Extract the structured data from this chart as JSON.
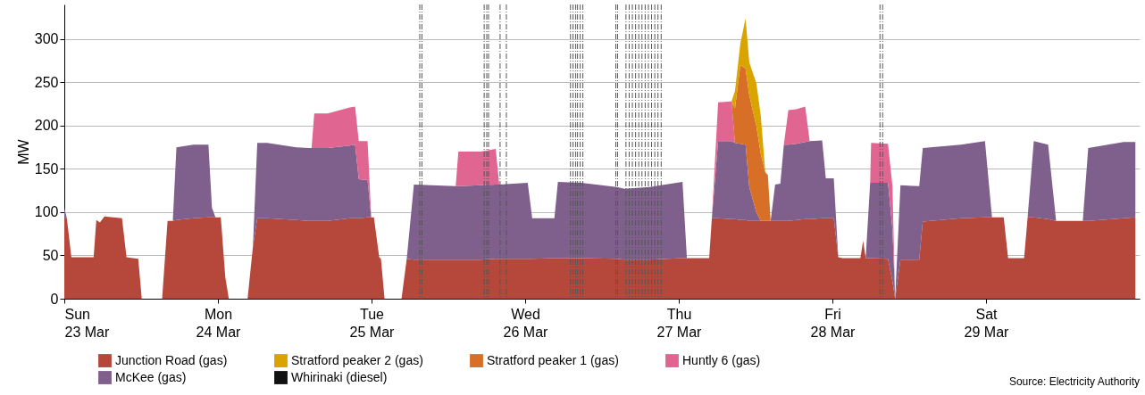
{
  "chart_data": {
    "type": "area",
    "stacked": true,
    "ylabel": "MW",
    "ylim": [
      0,
      340
    ],
    "yticks": [
      0,
      50,
      100,
      150,
      200,
      250,
      300
    ],
    "xlim": [
      "--03-23T00:00",
      "--03-30T00:00"
    ],
    "xticks": [
      {
        "value": "--03-23",
        "label": "Sun\n23 Mar"
      },
      {
        "value": "--03-24",
        "label": "Mon\n24 Mar"
      },
      {
        "value": "--03-25",
        "label": "Tue\n25 Mar"
      },
      {
        "value": "--03-26",
        "label": "Wed\n26 Mar"
      },
      {
        "value": "--03-27",
        "label": "Thu\n27 Mar"
      },
      {
        "value": "--03-28",
        "label": "Fri\n28 Mar"
      },
      {
        "value": "--03-29",
        "label": "Sat\n29 Mar"
      }
    ],
    "grid": "y",
    "legend": "bottom",
    "x": [
      "--03-23T00:00",
      "--03-23T00:24",
      "--03-23T01:06",
      "--03-23T04:35",
      "--03-23T05:00",
      "--03-23T05:34",
      "--03-23T06:16",
      "--03-23T09:01",
      "--03-23T09:43",
      "--03-23T11:33",
      "--03-23T12:06",
      "--03-23T15:17",
      "--03-23T16:08",
      "--03-23T16:57",
      "--03-23T17:31",
      "--03-23T20:10",
      "--03-23T22:31",
      "--03-23T23:04",
      "--03-23T23:37",
      "--03-24T00:27",
      "--03-24T01:09",
      "--03-24T01:42",
      "--03-24T04:38",
      "--03-24T05:28",
      "--03-24T06:09",
      "--03-24T07:41",
      "--03-24T12:16",
      "--03-24T14:12",
      "--03-24T14:38",
      "--03-24T15:03",
      "--03-24T17:08",
      "--03-24T20:37",
      "--03-24T21:26",
      "--03-24T22:00",
      "--03-24T23:23",
      "--03-24T23:57",
      "--03-25T00:22",
      "--03-25T01:12",
      "--03-25T01:28",
      "--03-25T02:02",
      "--03-25T04:41",
      "--03-25T05:30",
      "--03-25T06:37",
      "--03-25T13:09",
      "--03-25T13:34",
      "--03-25T17:02",
      "--03-25T19:24",
      "--03-25T19:57",
      "--03-26T00:24",
      "--03-26T01:06",
      "--03-26T04:34",
      "--03-26T05:07",
      "--03-26T08:44",
      "--03-26T14:18",
      "--03-26T15:33",
      "--03-26T19:26",
      "--03-27T00:35",
      "--03-27T01:16",
      "--03-27T04:45",
      "--03-27T05:10",
      "--03-27T06:09",
      "--03-27T08:14",
      "--03-27T08:47",
      "--03-27T09:37",
      "--03-27T10:26",
      "--03-27T11:01",
      "--03-27T12:07",
      "--03-27T12:49",
      "--03-27T13:31",
      "--03-27T13:55",
      "--03-27T14:21",
      "--03-27T15:03",
      "--03-27T15:52",
      "--03-27T16:25",
      "--03-27T17:07",
      "--03-27T18:22",
      "--03-27T19:45",
      "--03-27T20:27",
      "--03-27T22:24",
      "--03-27T22:58",
      "--03-28T00:13",
      "--03-28T00:55",
      "--03-28T01:36",
      "--03-28T04:22",
      "--03-28T04:48",
      "--03-28T05:12",
      "--03-28T05:54",
      "--03-28T06:03",
      "--03-28T08:41",
      "--03-28T09:23",
      "--03-28T09:48",
      "--03-28T10:38",
      "--03-28T13:34",
      "--03-28T14:07",
      "--03-28T20:05",
      "--03-28T23:50",
      "--03-29T00:56",
      "--03-29T02:46",
      "--03-29T03:27",
      "--03-29T05:57",
      "--03-29T06:30",
      "--03-29T07:28",
      "--03-29T09:42",
      "--03-29T10:57",
      "--03-29T15:07",
      "--03-29T15:58",
      "--03-29T21:30",
      "--03-29T23:20"
    ],
    "series": [
      {
        "name": "Junction Road (gas)",
        "color": "#b5483a",
        "values": [
          93,
          93,
          48,
          48,
          91,
          88,
          95,
          93,
          48,
          46,
          0,
          0,
          90,
          90,
          91,
          93,
          94,
          94,
          94,
          94,
          25,
          0,
          0,
          60,
          93,
          93,
          91,
          90,
          90,
          90,
          90,
          93,
          93,
          93,
          94,
          94,
          94,
          48,
          46,
          0,
          0,
          46,
          45,
          45,
          45,
          45,
          46,
          46,
          46,
          46,
          47,
          47,
          47,
          46,
          45,
          45,
          47,
          47,
          47,
          93,
          93,
          92,
          92,
          91,
          91,
          90,
          90,
          90,
          90,
          90,
          90,
          90,
          90,
          90,
          90,
          91,
          92,
          92,
          93,
          93,
          93,
          48,
          47,
          47,
          67,
          47,
          47,
          47,
          46,
          20,
          0,
          45,
          45,
          89,
          93,
          94,
          94,
          94,
          47,
          47,
          94,
          94,
          92,
          90,
          90,
          90,
          93,
          94
        ]
      },
      {
        "name": "McKee (gas)",
        "color": "#7f5f8c",
        "values": [
          12,
          0,
          0,
          0,
          0,
          0,
          0,
          0,
          0,
          0,
          0,
          0,
          0,
          0,
          84,
          85,
          84,
          11,
          0,
          0,
          0,
          0,
          0,
          0,
          87,
          87,
          84,
          84,
          84,
          84,
          84,
          84,
          85,
          45,
          43,
          0,
          0,
          0,
          0,
          0,
          0,
          0,
          87,
          85,
          85,
          86,
          86,
          86,
          88,
          47,
          46,
          88,
          87,
          83,
          82,
          84,
          88,
          0,
          0,
          0,
          89,
          90,
          88,
          88,
          87,
          39,
          10,
          0,
          0,
          0,
          0,
          42,
          43,
          88,
          88,
          88,
          89,
          90,
          90,
          46,
          46,
          0,
          0,
          0,
          0,
          0,
          87,
          87,
          88,
          60,
          0,
          86,
          85,
          85,
          85,
          88,
          0,
          0,
          0,
          0,
          0,
          88,
          86,
          0,
          0,
          84,
          88,
          87
        ]
      },
      {
        "name": "Huntly 6 (gas)",
        "color": "#e06591",
        "values": [
          0,
          0,
          0,
          0,
          0,
          0,
          0,
          0,
          0,
          0,
          0,
          0,
          0,
          0,
          0,
          0,
          0,
          0,
          0,
          0,
          0,
          0,
          0,
          0,
          0,
          0,
          0,
          0,
          0,
          40,
          40,
          44,
          44,
          44,
          45,
          0,
          0,
          0,
          0,
          0,
          0,
          0,
          0,
          0,
          40,
          39,
          41,
          0,
          0,
          0,
          0,
          0,
          0,
          0,
          0,
          0,
          0,
          0,
          0,
          0,
          45,
          46,
          0,
          0,
          0,
          0,
          0,
          0,
          0,
          0,
          0,
          0,
          0,
          0,
          40,
          40,
          41,
          0,
          0,
          0,
          0,
          0,
          0,
          0,
          0,
          0,
          0,
          46,
          45,
          50,
          0,
          0,
          0,
          0,
          0,
          0,
          0,
          0,
          0,
          0,
          0,
          0,
          0,
          0,
          0,
          0,
          0,
          0
        ]
      },
      {
        "name": "Stratford peaker 1 (gas)",
        "color": "#d86f27",
        "values": [
          0,
          0,
          0,
          0,
          0,
          0,
          0,
          0,
          0,
          0,
          0,
          0,
          0,
          0,
          0,
          0,
          0,
          0,
          0,
          0,
          0,
          0,
          0,
          0,
          0,
          0,
          0,
          0,
          0,
          0,
          0,
          0,
          0,
          0,
          0,
          0,
          0,
          0,
          0,
          0,
          0,
          0,
          0,
          0,
          0,
          0,
          0,
          0,
          0,
          0,
          0,
          0,
          0,
          0,
          0,
          0,
          0,
          0,
          0,
          0,
          0,
          0,
          40,
          91,
          88,
          106,
          100,
          77,
          56,
          53,
          0,
          0,
          0,
          0,
          0,
          0,
          0,
          0,
          0,
          0,
          0,
          0,
          0,
          0,
          0,
          0,
          0,
          0,
          0,
          0,
          0,
          0,
          0,
          0,
          0,
          0,
          0,
          0,
          0,
          0,
          0,
          0,
          0,
          0,
          0,
          0,
          0,
          0
        ]
      },
      {
        "name": "Stratford peaker 2 (gas)",
        "color": "#d9a300",
        "values": [
          0,
          0,
          0,
          0,
          0,
          0,
          0,
          0,
          0,
          0,
          0,
          0,
          0,
          0,
          0,
          0,
          0,
          0,
          0,
          0,
          0,
          0,
          0,
          0,
          0,
          0,
          0,
          0,
          0,
          0,
          0,
          0,
          0,
          0,
          0,
          0,
          0,
          0,
          0,
          0,
          0,
          0,
          0,
          0,
          0,
          0,
          0,
          0,
          0,
          0,
          0,
          0,
          0,
          0,
          0,
          0,
          0,
          0,
          0,
          0,
          0,
          0,
          20,
          25,
          58,
          38,
          49,
          44,
          0,
          0,
          0,
          0,
          0,
          0,
          0,
          0,
          0,
          0,
          0,
          0,
          0,
          0,
          0,
          0,
          0,
          0,
          0,
          0,
          0,
          0,
          0,
          0,
          0,
          0,
          0,
          0,
          0,
          0,
          0,
          0,
          0,
          0,
          0,
          0,
          0,
          0,
          0,
          0
        ]
      },
      {
        "name": "Whirinaki (diesel)",
        "color": "#111111",
        "values": [
          null,
          null,
          null,
          null,
          null,
          null,
          null,
          null,
          null,
          null,
          null,
          null,
          null,
          null,
          null,
          null,
          null,
          null,
          null,
          null,
          null,
          null,
          null,
          null,
          null,
          null,
          null,
          null,
          null,
          null,
          null,
          null,
          null,
          null,
          null,
          null,
          null,
          null,
          null,
          null,
          null,
          null,
          null,
          null,
          null,
          null,
          null,
          null,
          null,
          null,
          null,
          null,
          null,
          null,
          null,
          null,
          null,
          null,
          null,
          null,
          null,
          null,
          null,
          null,
          null,
          null,
          null,
          null,
          null,
          null,
          null,
          null,
          null,
          null,
          null,
          null,
          null,
          null,
          null,
          null,
          null,
          null,
          null,
          null,
          null,
          null,
          null,
          null,
          null,
          null,
          null,
          null,
          null,
          null,
          null,
          null,
          null,
          null,
          null,
          null,
          null,
          null,
          null,
          null,
          null,
          null,
          null,
          null
        ]
      }
    ],
    "ref_lines": [
      {
        "axis": "x",
        "value": "--03-25T07:32",
        "color": "#555555",
        "line_style": "dashed"
      },
      {
        "axis": "x",
        "value": "--03-25T07:52",
        "color": "#555555",
        "line_style": "dashed"
      },
      {
        "axis": "x",
        "value": "--03-25T17:36",
        "color": "#555555",
        "line_style": "dashed"
      },
      {
        "axis": "x",
        "value": "--03-25T18:00",
        "color": "#555555",
        "line_style": "dashed"
      },
      {
        "axis": "x",
        "value": "--03-25T18:17",
        "color": "#555555",
        "line_style": "dashed"
      },
      {
        "axis": "x",
        "value": "--03-25T20:05",
        "color": "#555555",
        "line_style": "dashed"
      },
      {
        "axis": "x",
        "value": "--03-25T21:04",
        "color": "#555555",
        "line_style": "dashed"
      },
      {
        "axis": "x",
        "value": "--03-26T07:05",
        "color": "#555555",
        "line_style": "dashed"
      },
      {
        "axis": "x",
        "value": "--03-26T07:29",
        "color": "#555555",
        "line_style": "dashed"
      },
      {
        "axis": "x",
        "value": "--03-26T07:54",
        "color": "#555555",
        "line_style": "dashed"
      },
      {
        "axis": "x",
        "value": "--03-26T08:11",
        "color": "#555555",
        "line_style": "dashed"
      },
      {
        "axis": "x",
        "value": "--03-26T08:36",
        "color": "#555555",
        "line_style": "dashed"
      },
      {
        "axis": "x",
        "value": "--03-26T09:01",
        "color": "#555555",
        "line_style": "dashed"
      },
      {
        "axis": "x",
        "value": "--03-26T14:10",
        "color": "#555555",
        "line_style": "dashed"
      },
      {
        "axis": "x",
        "value": "--03-26T14:27",
        "color": "#555555",
        "line_style": "dashed"
      },
      {
        "axis": "x",
        "value": "--03-26T15:45",
        "color": "#555555",
        "line_style": "dashed"
      },
      {
        "axis": "x",
        "value": "--03-26T16:15",
        "color": "#555555",
        "line_style": "dashed"
      },
      {
        "axis": "x",
        "value": "--03-26T16:45",
        "color": "#555555",
        "line_style": "dashed"
      },
      {
        "axis": "x",
        "value": "--03-26T17:15",
        "color": "#555555",
        "line_style": "dashed"
      },
      {
        "axis": "x",
        "value": "--03-26T17:45",
        "color": "#555555",
        "line_style": "dashed"
      },
      {
        "axis": "x",
        "value": "--03-26T18:15",
        "color": "#555555",
        "line_style": "dashed"
      },
      {
        "axis": "x",
        "value": "--03-26T18:45",
        "color": "#555555",
        "line_style": "dashed"
      },
      {
        "axis": "x",
        "value": "--03-26T19:15",
        "color": "#555555",
        "line_style": "dashed"
      },
      {
        "axis": "x",
        "value": "--03-26T19:45",
        "color": "#555555",
        "line_style": "dashed"
      },
      {
        "axis": "x",
        "value": "--03-26T20:15",
        "color": "#555555",
        "line_style": "dashed"
      },
      {
        "axis": "x",
        "value": "--03-26T20:45",
        "color": "#555555",
        "line_style": "dashed"
      },
      {
        "axis": "x",
        "value": "--03-26T21:15",
        "color": "#555555",
        "line_style": "dashed"
      },
      {
        "axis": "x",
        "value": "--03-28T07:26",
        "color": "#555555",
        "line_style": "dashed"
      },
      {
        "axis": "x",
        "value": "--03-28T07:51",
        "color": "#555555",
        "line_style": "dashed"
      }
    ],
    "annotations": [
      "Source: Electricity Authority"
    ]
  }
}
